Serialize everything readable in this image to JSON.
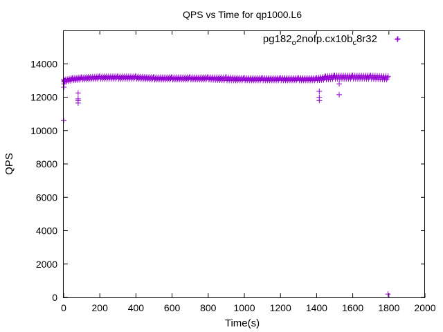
{
  "chart_data": {
    "type": "scatter",
    "title": "QPS vs Time for qp1000.L6",
    "xlabel": "Time(s)",
    "ylabel": "QPS",
    "xlim": [
      0,
      2000
    ],
    "ylim": [
      0,
      16000
    ],
    "xticks": [
      0,
      200,
      400,
      600,
      800,
      1000,
      1200,
      1400,
      1600,
      1800,
      2000
    ],
    "yticks": [
      0,
      2000,
      4000,
      6000,
      8000,
      10000,
      12000,
      14000
    ],
    "grid": false,
    "legend_position": "top-right",
    "marker": "+",
    "color": "#9400d3",
    "series": [
      {
        "name_parts": [
          "pg182",
          "o",
          "2nofp.cx10b",
          "c",
          "8r32"
        ],
        "points": [
          [
            0,
            10600
          ],
          [
            1,
            12600
          ],
          [
            2,
            12800
          ],
          [
            3,
            12950
          ],
          [
            5,
            13000
          ],
          [
            80,
            11650
          ],
          [
            80,
            11800
          ],
          [
            80,
            11900
          ],
          [
            80,
            12250
          ],
          [
            1415,
            11800
          ],
          [
            1415,
            12000
          ],
          [
            1415,
            12350
          ],
          [
            1525,
            12150
          ],
          [
            1525,
            12800
          ],
          [
            1795,
            200
          ],
          [
            1850,
            15500
          ]
        ],
        "band": [
          [
            0,
            12900,
            13050
          ],
          [
            50,
            13000,
            13150
          ],
          [
            100,
            13050,
            13200
          ],
          [
            200,
            13100,
            13250
          ],
          [
            300,
            13100,
            13250
          ],
          [
            400,
            13100,
            13250
          ],
          [
            500,
            13050,
            13200
          ],
          [
            600,
            13050,
            13200
          ],
          [
            700,
            13050,
            13200
          ],
          [
            800,
            13050,
            13200
          ],
          [
            900,
            13000,
            13200
          ],
          [
            1000,
            13000,
            13150
          ],
          [
            1100,
            13000,
            13150
          ],
          [
            1200,
            13000,
            13150
          ],
          [
            1300,
            13000,
            13150
          ],
          [
            1400,
            13000,
            13150
          ],
          [
            1450,
            13050,
            13250
          ],
          [
            1500,
            13100,
            13300
          ],
          [
            1600,
            13100,
            13300
          ],
          [
            1700,
            13100,
            13300
          ],
          [
            1800,
            13050,
            13250
          ]
        ]
      }
    ]
  }
}
